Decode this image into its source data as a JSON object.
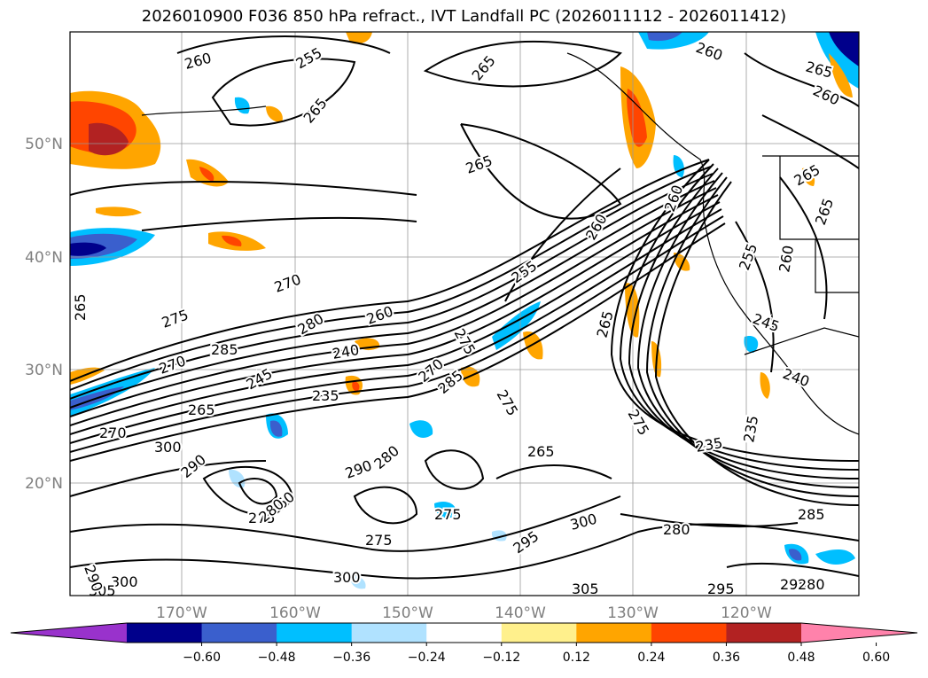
{
  "title": "2026010900 F036 850 hPa refract., IVT Landfall PC (2026011112 - 2026011412)",
  "lat_labels": [
    "50°N",
    "40°N",
    "30°N",
    "20°N"
  ],
  "lon_labels": [
    "170°W",
    "160°W",
    "150°W",
    "140°W",
    "130°W",
    "120°W"
  ],
  "colorbar": {
    "colors": [
      "#9932cc",
      "#00008b",
      "#3a5fcd",
      "#00bfff",
      "#b0e2ff",
      "#ffffff",
      "#fff08c",
      "#ffa500",
      "#ff4500",
      "#b22222",
      "#ff82ab"
    ],
    "tick_labels": [
      "−0.60",
      "−0.48",
      "−0.36",
      "−0.24",
      "−0.12",
      "0.12",
      "0.24",
      "0.36",
      "0.48",
      "0.60"
    ]
  },
  "contour_labels": [
    "260",
    "255",
    "265",
    "265",
    "265",
    "260",
    "265",
    "260",
    "265",
    "265",
    "265",
    "260",
    "270",
    "275",
    "285",
    "280",
    "260",
    "255",
    "240",
    "245",
    "235",
    "270",
    "265",
    "265",
    "275",
    "270",
    "300",
    "290",
    "280",
    "290",
    "260",
    "275",
    "280",
    "275",
    "275",
    "300",
    "295",
    "300",
    "305",
    "295",
    "300",
    "305",
    "285",
    "280",
    "235",
    "235",
    "275",
    "265",
    "240",
    "245",
    "255",
    "260",
    "260",
    "275",
    "270",
    "285",
    "290",
    "295",
    "280"
  ]
}
